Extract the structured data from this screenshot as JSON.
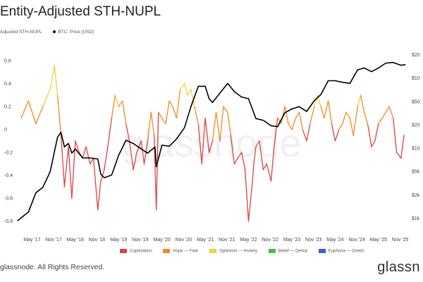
{
  "title": "Entity-Adjusted STH-NUPL",
  "legend_top": [
    {
      "label": "Adjusted STH-NUPL",
      "marker": "none"
    },
    {
      "label": "BTC: Price [USD]",
      "marker": "dot"
    }
  ],
  "legend_bottom": [
    {
      "label": "Capitulation",
      "color": "#e04040"
    },
    {
      "label": "Hope — Fear",
      "color": "#f08a24"
    },
    {
      "label": "Optimism — Anxiety",
      "color": "#f2cf3c"
    },
    {
      "label": "Belief — Denial",
      "color": "#3cc43c"
    },
    {
      "label": "Euphoria — Greed",
      "color": "#3a5fd9"
    }
  ],
  "watermark": "glassnode",
  "copyright": "glassnode. All Rights Reserved.",
  "brand": "glassn",
  "chart_data": {
    "type": "line",
    "x_ticks": [
      "May '17",
      "Nov '17",
      "May '18",
      "Nov '18",
      "May '19",
      "Nov '19",
      "May '20",
      "Nov '20",
      "May '21",
      "Nov '21",
      "May '22",
      "Nov '22",
      "May '23",
      "Nov '23",
      "May '24",
      "Nov '24",
      "May '25",
      "Nov '25"
    ],
    "y_left_ticks": [
      0.6,
      0.4,
      0.2,
      0,
      -0.2,
      -0.4,
      -0.6,
      -0.8
    ],
    "y_left_lim": [
      -0.9,
      0.65
    ],
    "y_right_ticks": [
      "$20",
      "$10",
      "$50",
      "$20",
      "$10",
      "$5k",
      "$2k",
      "$1k"
    ],
    "series": [
      {
        "name": "Adjusted STH-NUPL",
        "x": [
          2017.08,
          2017.25,
          2017.42,
          2017.58,
          2017.75,
          2017.85,
          2017.92,
          2018.0,
          2018.08,
          2018.17,
          2018.25,
          2018.33,
          2018.42,
          2018.5,
          2018.58,
          2018.67,
          2018.75,
          2018.85,
          2018.92,
          2019.0,
          2019.08,
          2019.17,
          2019.25,
          2019.33,
          2019.42,
          2019.5,
          2019.58,
          2019.67,
          2019.75,
          2019.85,
          2019.92,
          2020.0,
          2020.08,
          2020.15,
          2020.2,
          2020.25,
          2020.33,
          2020.42,
          2020.5,
          2020.58,
          2020.67,
          2020.75,
          2020.85,
          2020.92,
          2021.0,
          2021.08,
          2021.17,
          2021.25,
          2021.33,
          2021.42,
          2021.5,
          2021.58,
          2021.67,
          2021.75,
          2021.85,
          2021.92,
          2022.0,
          2022.08,
          2022.17,
          2022.25,
          2022.33,
          2022.42,
          2022.45,
          2022.5,
          2022.58,
          2022.67,
          2022.75,
          2022.85,
          2022.92,
          2023.0,
          2023.08,
          2023.17,
          2023.25,
          2023.33,
          2023.42,
          2023.5,
          2023.58,
          2023.67,
          2023.75,
          2023.85,
          2023.92,
          2024.0,
          2024.08,
          2024.17,
          2024.25,
          2024.33,
          2024.42,
          2024.5,
          2024.58,
          2024.67,
          2024.75,
          2024.85,
          2024.92,
          2025.0,
          2025.08,
          2025.17,
          2025.25,
          2025.33,
          2025.42,
          2025.5,
          2025.58,
          2025.67,
          2025.75,
          2025.85,
          2025.92
        ],
        "y": [
          0.1,
          0.25,
          0.05,
          0.2,
          0.35,
          0.55,
          0.3,
          -0.05,
          -0.5,
          -0.15,
          -0.6,
          -0.1,
          -0.2,
          -0.25,
          -0.15,
          -0.3,
          -0.25,
          -0.7,
          -0.45,
          -0.35,
          -0.15,
          0.1,
          0.3,
          0.2,
          0.25,
          0.05,
          -0.1,
          -0.35,
          -0.2,
          -0.1,
          -0.3,
          -0.1,
          0.15,
          -0.05,
          -0.7,
          0.15,
          0.1,
          0.05,
          0.25,
          0.2,
          0.1,
          0.35,
          0.4,
          0.3,
          0.35,
          0.2,
          0.05,
          -0.3,
          0.1,
          -0.2,
          -0.1,
          0.15,
          -0.1,
          0.2,
          0.15,
          -0.05,
          -0.3,
          -0.25,
          -0.2,
          -0.35,
          -0.8,
          -0.45,
          -0.3,
          -0.15,
          -0.1,
          -0.35,
          -0.3,
          -0.45,
          -0.15,
          0.1,
          0.05,
          0.2,
          0.05,
          0.0,
          0.1,
          0.15,
          0.0,
          -0.1,
          0.05,
          0.2,
          0.3,
          0.2,
          0.1,
          0.25,
          0.05,
          -0.1,
          0.0,
          0.05,
          0.15,
          0.1,
          -0.05,
          0.2,
          0.3,
          0.15,
          0.05,
          -0.15,
          -0.1,
          0.05,
          0.1,
          0.15,
          0.2,
          0.1,
          -0.2,
          -0.25,
          -0.05
        ]
      },
      {
        "name": "BTC: Price [USD]",
        "x": [
          2017.0,
          2017.25,
          2017.42,
          2017.58,
          2017.75,
          2017.92,
          2018.0,
          2018.08,
          2018.17,
          2018.25,
          2018.33,
          2018.5,
          2018.67,
          2018.85,
          2018.92,
          2019.0,
          2019.17,
          2019.33,
          2019.5,
          2019.67,
          2019.85,
          2020.0,
          2020.17,
          2020.2,
          2020.33,
          2020.5,
          2020.67,
          2020.85,
          2021.0,
          2021.17,
          2021.33,
          2021.42,
          2021.5,
          2021.67,
          2021.85,
          2022.0,
          2022.17,
          2022.33,
          2022.5,
          2022.67,
          2022.85,
          2023.0,
          2023.17,
          2023.33,
          2023.5,
          2023.67,
          2023.85,
          2024.0,
          2024.17,
          2024.33,
          2024.5,
          2024.67,
          2024.85,
          2025.0,
          2025.17,
          2025.33,
          2025.5,
          2025.67,
          2025.85,
          2025.95
        ],
        "y": [
          1000,
          1300,
          2300,
          2700,
          4300,
          12000,
          14000,
          9000,
          10000,
          7500,
          8500,
          6500,
          6500,
          6300,
          4000,
          3600,
          3900,
          7000,
          11000,
          10000,
          8500,
          7500,
          9000,
          5000,
          9500,
          9200,
          11500,
          16000,
          30000,
          55000,
          55000,
          38000,
          34000,
          45000,
          60000,
          47000,
          40000,
          38000,
          21000,
          20000,
          17000,
          16500,
          25000,
          28000,
          30000,
          26000,
          36000,
          43000,
          65000,
          65000,
          62000,
          60000,
          90000,
          95000,
          85000,
          95000,
          110000,
          112000,
          103000,
          105000
        ]
      }
    ],
    "zones": [
      {
        "label": "Capitulation",
        "range": [
          -1,
          0
        ]
      },
      {
        "label": "Hope — Fear",
        "range": [
          0,
          0.25
        ]
      },
      {
        "label": "Optimism — Anxiety",
        "range": [
          0.25,
          0.5
        ]
      },
      {
        "label": "Belief — Denial",
        "range": [
          0.5,
          0.75
        ]
      },
      {
        "label": "Euphoria — Greed",
        "range": [
          0.75,
          1
        ]
      }
    ]
  }
}
